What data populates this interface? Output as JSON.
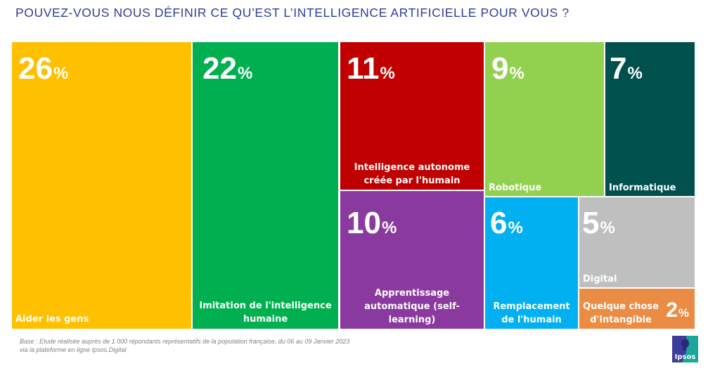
{
  "title": "POUVEZ-VOUS NOUS DÉFINIR CE QU’EST L’INTELLIGENCE ARTIFICIELLE POUR VOUS ?",
  "chart_data": {
    "type": "treemap",
    "title": "POUVEZ-VOUS NOUS DÉFINIR CE QU’EST L’INTELLIGENCE ARTIFICIELLE POUR VOUS ?",
    "unit": "%",
    "categories": [
      "Aider les gens",
      "Imitation de l'intelligence humaine",
      "Intelligence autonome créée par l'humain",
      "Apprentissage automatique (self-learning)",
      "Robotique",
      "Informatique",
      "Remplacement de l'humain",
      "Digital",
      "Quelque chose d'intangible"
    ],
    "values": [
      26,
      22,
      11,
      10,
      9,
      7,
      6,
      5,
      2
    ],
    "colors": [
      "#ffc000",
      "#00b050",
      "#c00000",
      "#8a3a9e",
      "#92d050",
      "#00504e",
      "#00b0f0",
      "#bfbfbf",
      "#eb8c45"
    ]
  },
  "tiles": [
    {
      "pct": "26",
      "label": "Aider les gens"
    },
    {
      "pct": "22",
      "label": "Imitation de l'intelligence humaine"
    },
    {
      "pct": "11",
      "label": "Intelligence autonome créée par l'humain"
    },
    {
      "pct": "10",
      "label": "Apprentissage automatique (self-learning)"
    },
    {
      "pct": "9",
      "label": "Robotique"
    },
    {
      "pct": "7",
      "label": "Informatique"
    },
    {
      "pct": "6",
      "label": "Remplacement de l'humain"
    },
    {
      "pct": "5",
      "label": "Digital"
    },
    {
      "pct": "2",
      "label": "Quelque chose d'intangible"
    }
  ],
  "percent_symbol": "%",
  "footnote": {
    "line1": "Base : Etude réalisée auprès de 1 000 répondants représentatifs de la population française, du 06 au 09 Janvier 2023",
    "line2": "via la plateforme en ligne Ipsos.Digital"
  },
  "logo": {
    "text": "Ipsos",
    "color_left": "#3c3c9b",
    "color_right": "#1aa79a"
  }
}
